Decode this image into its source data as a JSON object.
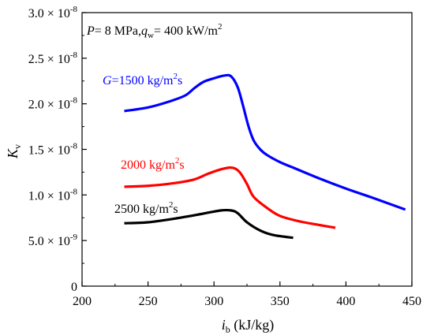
{
  "chart_data": {
    "type": "line",
    "xlabel": {
      "main": "i",
      "sub": "b",
      "unit": " (kJ/kg)"
    },
    "ylabel": {
      "main": "K",
      "sub": "v"
    },
    "xlim": [
      200,
      450
    ],
    "ylim": [
      0,
      3e-08
    ],
    "x_ticks": [
      200,
      250,
      300,
      350,
      400,
      450
    ],
    "y_ticks": [
      {
        "value": 0,
        "mant": "0",
        "exp": ""
      },
      {
        "value": 5e-09,
        "mant": "5.0",
        "exp": "-9"
      },
      {
        "value": 1e-08,
        "mant": "1.0",
        "exp": "-8"
      },
      {
        "value": 1.5e-08,
        "mant": "1.5",
        "exp": "-8"
      },
      {
        "value": 2e-08,
        "mant": "2.0",
        "exp": "-8"
      },
      {
        "value": 2.5e-08,
        "mant": "2.5",
        "exp": "-8"
      },
      {
        "value": 3e-08,
        "mant": "3.0",
        "exp": "-8"
      }
    ],
    "grid": false,
    "annotation": {
      "p_italic": "P",
      "p_rest": "= 8 MPa,",
      "q_italic": "q",
      "q_sub": "w",
      "q_rest": "= 400 kW/m",
      "q_sup": "2"
    },
    "series": [
      {
        "name": "G=1500 kg/m2s",
        "label_parts": {
          "italic": "G",
          "pre": "=1500 kg/m",
          "sup": "2",
          "post": "s"
        },
        "color": "#0000ff",
        "x": [
          232,
          250,
          265,
          278,
          285,
          292,
          300,
          308,
          313,
          318,
          322,
          326,
          330,
          335,
          340,
          350,
          360,
          380,
          400,
          420,
          445
        ],
        "y": [
          1.92e-08,
          1.96e-08,
          2.02e-08,
          2.09e-08,
          2.17e-08,
          2.24e-08,
          2.28e-08,
          2.31e-08,
          2.3e-08,
          2.18e-08,
          1.98e-08,
          1.76e-08,
          1.6e-08,
          1.5e-08,
          1.44e-08,
          1.36e-08,
          1.3e-08,
          1.18e-08,
          1.07e-08,
          9.7e-09,
          8.4e-09
        ]
      },
      {
        "name": "2000 kg/m2s",
        "label_parts": {
          "italic": "",
          "pre": "2000 kg/m",
          "sup": "2",
          "post": "s"
        },
        "color": "#ff0000",
        "x": [
          232,
          250,
          270,
          285,
          295,
          305,
          312,
          316,
          320,
          325,
          330,
          340,
          350,
          365,
          380,
          392
        ],
        "y": [
          1.09e-08,
          1.1e-08,
          1.13e-08,
          1.17e-08,
          1.23e-08,
          1.28e-08,
          1.3e-08,
          1.29e-08,
          1.24e-08,
          1.12e-08,
          9.8e-09,
          8.6e-09,
          7.7e-09,
          7.1e-09,
          6.7e-09,
          6.4e-09
        ]
      },
      {
        "name": "2500 kg/m2s",
        "label_parts": {
          "italic": "",
          "pre": "2500 kg/m",
          "sup": "2",
          "post": "s"
        },
        "color": "#000000",
        "x": [
          232,
          250,
          270,
          290,
          305,
          313,
          318,
          325,
          335,
          345,
          360
        ],
        "y": [
          6.9e-09,
          7e-09,
          7.4e-09,
          7.9e-09,
          8.3e-09,
          8.3e-09,
          8e-09,
          7e-09,
          6.1e-09,
          5.6e-09,
          5.3e-09
        ]
      }
    ]
  }
}
